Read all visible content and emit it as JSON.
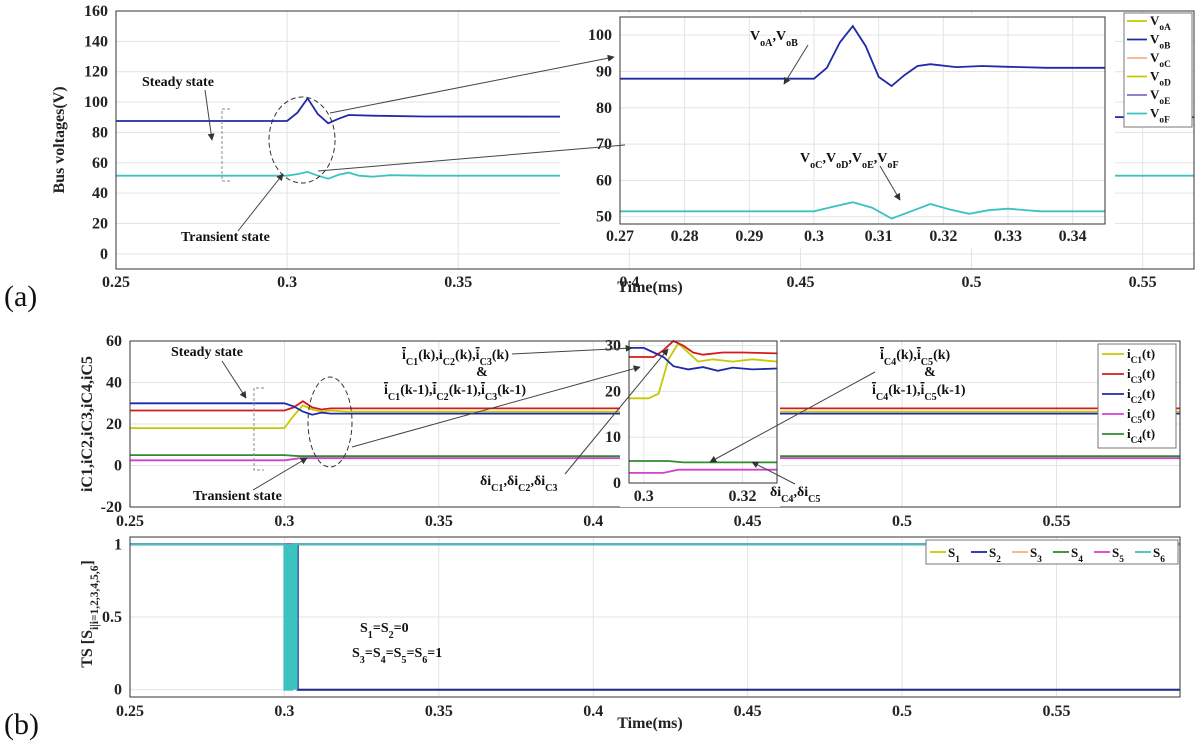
{
  "figure": {
    "label_a": "(a)",
    "label_b": "(b)"
  },
  "colors": {
    "yellow": "#c8c800",
    "blue": "#1f2aa8",
    "teal": "#3cc3c0",
    "red": "#d41a1a",
    "magenta": "#d43fd4",
    "green": "#2e8b2e",
    "orange": "#f2b28c",
    "purple": "#8a6ac8"
  },
  "chart_data": [
    {
      "id": "a-main",
      "type": "line",
      "xlabel": "Time(ms)",
      "ylabel": "Bus voltages(V)",
      "xlim": [
        0.25,
        0.565
      ],
      "ylim": [
        -10,
        160
      ],
      "xticks": [
        0.25,
        0.3,
        0.35,
        0.4,
        0.45,
        0.5,
        0.55
      ],
      "xtick_labels": [
        "0.25",
        "0.3",
        "0.35",
        "0.4",
        "0.45",
        "0.5",
        "0.55"
      ],
      "yticks": [
        0,
        20,
        40,
        60,
        80,
        100,
        120,
        140,
        160
      ],
      "series": [
        {
          "name": "VoA,VoB",
          "color": "#1f2aa8",
          "x": [
            0.25,
            0.3,
            0.303,
            0.306,
            0.309,
            0.312,
            0.315,
            0.318,
            0.325,
            0.34,
            0.565
          ],
          "y": [
            87.5,
            87.5,
            93,
            102.5,
            92,
            86,
            89,
            91.5,
            91,
            90.5,
            90
          ]
        },
        {
          "name": "VoC,VoD,VoE,VoF",
          "color": "#3cc3c0",
          "x": [
            0.25,
            0.3,
            0.303,
            0.306,
            0.309,
            0.312,
            0.315,
            0.318,
            0.321,
            0.325,
            0.33,
            0.34,
            0.565
          ],
          "y": [
            51.5,
            51.5,
            52.5,
            54,
            51.5,
            49.5,
            52,
            53.5,
            51.5,
            50.8,
            51.8,
            51.5,
            51.5
          ]
        }
      ],
      "annotations": [
        "Steady state",
        "Transient state"
      ]
    },
    {
      "id": "a-inset",
      "type": "line",
      "xlim": [
        0.27,
        0.345
      ],
      "ylim": [
        48,
        105
      ],
      "xticks": [
        0.27,
        0.28,
        0.29,
        0.3,
        0.31,
        0.32,
        0.33,
        0.34
      ],
      "xtick_labels": [
        "0.27",
        "0.28",
        "0.29",
        "0.3",
        "0.31",
        "0.32",
        "0.33",
        "0.34"
      ],
      "yticks": [
        50,
        60,
        70,
        80,
        90,
        100
      ],
      "series": [
        {
          "name": "VoA,VoB",
          "color": "#1f2aa8",
          "x": [
            0.27,
            0.3,
            0.302,
            0.304,
            0.306,
            0.308,
            0.31,
            0.312,
            0.314,
            0.316,
            0.318,
            0.322,
            0.326,
            0.33,
            0.336,
            0.345
          ],
          "y": [
            88,
            88,
            91,
            98,
            102.5,
            97,
            88.5,
            86,
            89,
            91.5,
            92,
            91.2,
            91.5,
            91.3,
            91,
            91
          ]
        },
        {
          "name": "VoC,VoD,VoE,VoF",
          "color": "#3cc3c0",
          "x": [
            0.27,
            0.3,
            0.303,
            0.306,
            0.309,
            0.312,
            0.315,
            0.318,
            0.321,
            0.324,
            0.327,
            0.33,
            0.335,
            0.345
          ],
          "y": [
            51.5,
            51.5,
            52.8,
            54,
            52.5,
            49.5,
            51.5,
            53.5,
            52,
            50.8,
            51.8,
            52.2,
            51.5,
            51.5
          ]
        }
      ],
      "annotations": [
        "VoA,VoB",
        "VoC,VoD,VoE,VoF"
      ]
    },
    {
      "id": "b-currents",
      "type": "line",
      "ylabel": "iC1,iC2,iC3,iC4,iC5",
      "xlim": [
        0.25,
        0.59
      ],
      "ylim": [
        -20,
        60
      ],
      "xticks": [
        0.25,
        0.3,
        0.35,
        0.4,
        0.45,
        0.5,
        0.55
      ],
      "xtick_labels": [
        "0.25",
        "0.3",
        "0.35",
        "0.4",
        "0.45",
        "0.5",
        "0.55"
      ],
      "yticks": [
        -20,
        0,
        20,
        40,
        60
      ],
      "series": [
        {
          "name": "iC1(t)",
          "color": "#c8c800",
          "x": [
            0.25,
            0.3,
            0.303,
            0.306,
            0.309,
            0.312,
            0.315,
            0.32,
            0.59
          ],
          "y": [
            18,
            18,
            24,
            29,
            27,
            26,
            26.5,
            26,
            26
          ]
        },
        {
          "name": "iC3(t)",
          "color": "#d41a1a",
          "x": [
            0.25,
            0.3,
            0.303,
            0.306,
            0.309,
            0.312,
            0.315,
            0.32,
            0.59
          ],
          "y": [
            26.5,
            26.5,
            28,
            31,
            28,
            27,
            27.5,
            27.5,
            27.5
          ]
        },
        {
          "name": "iC2(t)",
          "color": "#1f2aa8",
          "x": [
            0.25,
            0.3,
            0.303,
            0.306,
            0.309,
            0.312,
            0.315,
            0.32,
            0.59
          ],
          "y": [
            30,
            30,
            28.5,
            26,
            24.5,
            25.5,
            25,
            25,
            25
          ]
        },
        {
          "name": "iC5(t)",
          "color": "#d43fd4",
          "x": [
            0.25,
            0.3,
            0.305,
            0.59
          ],
          "y": [
            2.5,
            2.5,
            3.5,
            3.5
          ]
        },
        {
          "name": "iC4(t)",
          "color": "#2e8b2e",
          "x": [
            0.25,
            0.3,
            0.305,
            0.59
          ],
          "y": [
            5,
            5,
            4.5,
            4.5
          ]
        }
      ],
      "annotations": [
        "Steady state",
        "Transient state"
      ]
    },
    {
      "id": "b-inset",
      "type": "line",
      "xlim": [
        0.297,
        0.327
      ],
      "ylim": [
        0,
        31
      ],
      "xticks": [
        0.3,
        0.32
      ],
      "xtick_labels": [
        "0.3",
        "0.32"
      ],
      "yticks": [
        0,
        10,
        20,
        30
      ],
      "series": [
        {
          "name": "iC1(t)",
          "color": "#c8c800",
          "x": [
            0.297,
            0.301,
            0.303,
            0.305,
            0.307,
            0.309,
            0.311,
            0.314,
            0.318,
            0.322,
            0.327
          ],
          "y": [
            18.5,
            18.5,
            19.5,
            27,
            30.5,
            28.5,
            26.5,
            27,
            26.5,
            27,
            26.5
          ]
        },
        {
          "name": "iC3(t)",
          "color": "#d41a1a",
          "x": [
            0.297,
            0.302,
            0.304,
            0.306,
            0.308,
            0.31,
            0.312,
            0.316,
            0.32,
            0.327
          ],
          "y": [
            27.5,
            27.5,
            29,
            31,
            30,
            28.5,
            28,
            28.5,
            28.5,
            28.3
          ]
        },
        {
          "name": "iC2(t)",
          "color": "#1f2aa8",
          "x": [
            0.297,
            0.3,
            0.302,
            0.304,
            0.306,
            0.309,
            0.312,
            0.315,
            0.318,
            0.322,
            0.327
          ],
          "y": [
            29.5,
            29.5,
            28.5,
            27.5,
            25.5,
            24.8,
            25.3,
            24.5,
            25.2,
            24.8,
            25
          ]
        },
        {
          "name": "iC5(t)",
          "color": "#d43fd4",
          "x": [
            0.297,
            0.304,
            0.307,
            0.327
          ],
          "y": [
            2.2,
            2.2,
            2.9,
            2.9
          ]
        },
        {
          "name": "iC4(t)",
          "color": "#2e8b2e",
          "x": [
            0.297,
            0.305,
            0.308,
            0.327
          ],
          "y": [
            4.8,
            4.8,
            4.5,
            4.5
          ]
        }
      ],
      "annotations": [
        "iC1(k),iC2(k),iC3(k) & iC1(k-1),iC2(k-1),iC3(k-1)",
        "iC4(k),iC5(k) & iC4(k-1),iC5(k-1)",
        "δiC1,δiC2,δiC3",
        "δiC4,δiC5"
      ]
    },
    {
      "id": "b-switches",
      "type": "line",
      "xlabel": "Time(ms)",
      "ylabel": "TS [Si|i=1,2,3,4,5,6]",
      "xlim": [
        0.25,
        0.59
      ],
      "ylim": [
        -0.05,
        1.05
      ],
      "xticks": [
        0.25,
        0.3,
        0.35,
        0.4,
        0.45,
        0.5,
        0.55
      ],
      "xtick_labels": [
        "0.25",
        "0.3",
        "0.35",
        "0.4",
        "0.45",
        "0.5",
        "0.55"
      ],
      "yticks": [
        0,
        0.5,
        1
      ],
      "ytick_labels": [
        "0",
        "0.5",
        "1"
      ],
      "series": [
        {
          "name": "S1",
          "color": "#c8c800",
          "x": [
            0.25,
            0.3043,
            0.3043,
            0.59
          ],
          "y": [
            1,
            1,
            0,
            0
          ]
        },
        {
          "name": "S2",
          "color": "#1f2aa8",
          "x": [
            0.25,
            0.3043,
            0.3043,
            0.59
          ],
          "y": [
            1,
            1,
            0,
            0
          ]
        },
        {
          "name": "S3",
          "color": "#f2b28c",
          "x": [
            0.25,
            0.59
          ],
          "y": [
            1,
            1
          ]
        },
        {
          "name": "S4",
          "color": "#2e8b2e",
          "x": [
            0.25,
            0.59
          ],
          "y": [
            1,
            1
          ]
        },
        {
          "name": "S5",
          "color": "#d43fd4",
          "x": [
            0.25,
            0.59
          ],
          "y": [
            1,
            1
          ]
        },
        {
          "name": "S6",
          "color": "#3cc3c0",
          "x": [
            0.25,
            0.3,
            0.3,
            0.3025,
            0.3025,
            0.59
          ],
          "y": [
            1,
            1,
            0,
            0,
            1,
            1
          ]
        }
      ],
      "annotations": [
        "S1=S2=0",
        "S3=S4=S5=S6=1"
      ]
    }
  ],
  "labels": {
    "a_steady": "Steady state",
    "a_transient": "Transient state",
    "b_steady": "Steady state",
    "b_transient": "Transient state",
    "xlabel_a": "Time(ms)",
    "xlabel_b": "Time(ms)",
    "ylabel_a": "Bus voltages(V)",
    "ylabel_b1": "iC1,iC2,iC3,iC4,iC5",
    "ylabel_b2": "TS [Si|i=1,2,3,4,5,6]",
    "s_zero": "S1=S2=0",
    "s_one": "S3=S4=S5=S6=1"
  },
  "legends": {
    "a": [
      "VoA",
      "VoB",
      "VoC",
      "VoD",
      "VoE",
      "VoF"
    ],
    "b1": [
      "iC1(t)",
      "iC3(t)",
      "iC2(t)",
      "iC5(t)",
      "iC4(t)"
    ],
    "b2": [
      "S1",
      "S2",
      "S3",
      "S4",
      "S5",
      "S6"
    ]
  }
}
